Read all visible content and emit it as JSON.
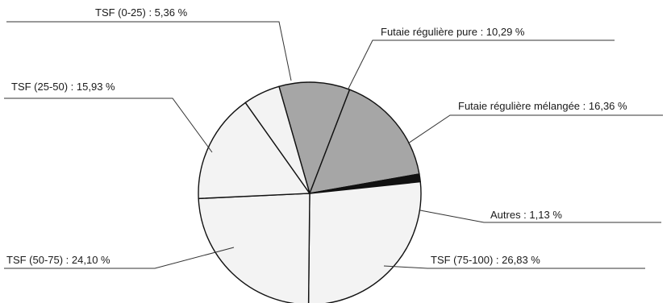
{
  "chart_data": {
    "type": "pie",
    "title": "",
    "legend": "none",
    "slices": [
      {
        "label": "Futaie régulière pure : 10,29 %",
        "value": 10.29,
        "color": "#a6a6a6"
      },
      {
        "label": "Futaie régulière mélangée : 16,36 %",
        "value": 16.36,
        "color": "#a6a6a6"
      },
      {
        "label": "Autres : 1,13 %",
        "value": 1.13,
        "color": "#111111"
      },
      {
        "label": "TSF (75-100) : 26,83 %",
        "value": 26.83,
        "color": "#f3f3f3"
      },
      {
        "label": "TSF (50-75) : 24,10 %",
        "value": 24.1,
        "color": "#f3f3f3"
      },
      {
        "label": "TSF (25-50) : 15,93 %",
        "value": 15.93,
        "color": "#f3f3f3"
      },
      {
        "label": "TSF (0-25) : 5,36 %",
        "value": 5.36,
        "color": "#f3f3f3"
      }
    ]
  }
}
